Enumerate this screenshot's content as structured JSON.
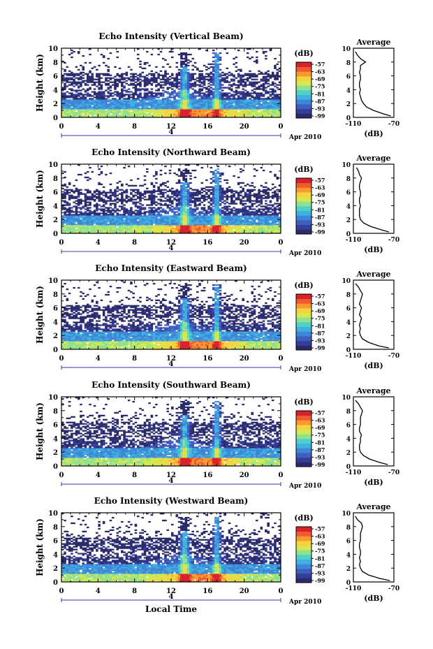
{
  "figure": {
    "x_axis_title": "Local Time",
    "date_label": "Apr 2010",
    "day_label": "4",
    "colorbar_unit": "(dB)",
    "avg_title": "Average",
    "avg_xlabel": "(dB)",
    "y_axis_title": "Height (km)"
  },
  "colors": {
    "colormap": [
      "#2b2b6b",
      "#353f9a",
      "#3f5fbf",
      "#3f86d8",
      "#3fb0df",
      "#4fd0c8",
      "#8fe08f",
      "#d4e84f",
      "#f7d23f",
      "#f89a2f",
      "#ef5a2f",
      "#d8222a"
    ],
    "axis": "#000000"
  },
  "chart_data": [
    {
      "type": "heatmap",
      "title": "Echo Intensity (Vertical Beam)",
      "xlabel": "",
      "ylabel": "Height (km)",
      "xlim": [
        0,
        24
      ],
      "ylim": [
        0,
        10
      ],
      "x_ticks": [
        "0",
        "4",
        "8",
        "12",
        "16",
        "20",
        "0"
      ],
      "y_ticks": [
        "0",
        "2",
        "4",
        "6",
        "8",
        "10"
      ],
      "colorbar": {
        "unit": "(dB)",
        "ticks": [
          "-57",
          "-63",
          "-69",
          "-75",
          "-81",
          "-87",
          "-93",
          "-99"
        ]
      },
      "average_profile": {
        "title": "Average",
        "xlabel": "(dB)",
        "xlim": [
          -110,
          -70
        ],
        "ylim": [
          0,
          10
        ],
        "x_ticks": [
          "-110",
          "-70"
        ],
        "y_ticks": [
          "0",
          "2",
          "4",
          "6",
          "8",
          "10"
        ],
        "height": [
          0.2,
          0.5,
          1.0,
          1.5,
          2.0,
          2.5,
          3.0,
          3.5,
          4.0,
          4.5,
          5.0,
          5.5,
          6.0,
          6.5,
          7.0,
          7.5,
          8.0,
          8.5,
          9.0,
          9.5
        ],
        "intensity": [
          -73,
          -80,
          -90,
          -97,
          -100,
          -102,
          -103,
          -104,
          -103,
          -104,
          -104,
          -103,
          -103,
          -104,
          -103,
          -103,
          -98,
          -103,
          -106,
          -108
        ]
      }
    },
    {
      "type": "heatmap",
      "title": "Echo Intensity (Northward Beam)",
      "xlabel": "",
      "ylabel": "Height (km)",
      "xlim": [
        0,
        24
      ],
      "ylim": [
        0,
        10
      ],
      "x_ticks": [
        "0",
        "4",
        "8",
        "12",
        "16",
        "20",
        "0"
      ],
      "y_ticks": [
        "0",
        "2",
        "4",
        "6",
        "8",
        "10"
      ],
      "colorbar": {
        "unit": "(dB)",
        "ticks": [
          "-57",
          "-63",
          "-69",
          "-75",
          "-81",
          "-87",
          "-93",
          "-99"
        ]
      },
      "average_profile": {
        "title": "Average",
        "xlabel": "(dB)",
        "xlim": [
          -110,
          -70
        ],
        "ylim": [
          0,
          10
        ],
        "x_ticks": [
          "-110",
          "-70"
        ],
        "y_ticks": [
          "0",
          "2",
          "4",
          "6",
          "8",
          "10"
        ],
        "height": [
          0.2,
          0.5,
          1.0,
          1.5,
          2.0,
          2.5,
          3.0,
          3.5,
          4.0,
          4.5,
          5.0,
          5.5,
          6.0,
          6.5,
          7.0,
          7.5,
          8.0,
          8.5,
          9.0,
          9.5
        ],
        "intensity": [
          -75,
          -82,
          -93,
          -100,
          -103,
          -104,
          -104,
          -104,
          -103,
          -104,
          -104,
          -103,
          -103,
          -104,
          -104,
          -103,
          -102,
          -104,
          -105,
          -107
        ]
      }
    },
    {
      "type": "heatmap",
      "title": "Echo Intensity (Eastward Beam)",
      "xlabel": "",
      "ylabel": "Height (km)",
      "xlim": [
        0,
        24
      ],
      "ylim": [
        0,
        10
      ],
      "x_ticks": [
        "0",
        "4",
        "8",
        "12",
        "16",
        "20",
        "0"
      ],
      "y_ticks": [
        "0",
        "2",
        "4",
        "6",
        "8",
        "10"
      ],
      "colorbar": {
        "unit": "(dB)",
        "ticks": [
          "-57",
          "-63",
          "-69",
          "-75",
          "-81",
          "-87",
          "-93",
          "-99"
        ]
      },
      "average_profile": {
        "title": "Average",
        "xlabel": "(dB)",
        "xlim": [
          -110,
          -70
        ],
        "ylim": [
          0,
          10
        ],
        "x_ticks": [
          "-110",
          "-70"
        ],
        "y_ticks": [
          "0",
          "2",
          "4",
          "6",
          "8",
          "10"
        ],
        "height": [
          0.2,
          0.5,
          1.0,
          1.5,
          2.0,
          2.5,
          3.0,
          3.5,
          4.0,
          4.5,
          5.0,
          5.5,
          6.0,
          6.5,
          7.0,
          7.5,
          8.0,
          8.5,
          9.0,
          9.5
        ],
        "intensity": [
          -75,
          -85,
          -95,
          -101,
          -103,
          -104,
          -103,
          -104,
          -103,
          -102,
          -104,
          -103,
          -102,
          -104,
          -103,
          -102,
          -101,
          -103,
          -105,
          -108
        ]
      }
    },
    {
      "type": "heatmap",
      "title": "Echo Intensity (Southward Beam)",
      "xlabel": "",
      "ylabel": "Height (km)",
      "xlim": [
        0,
        24
      ],
      "ylim": [
        0,
        10
      ],
      "x_ticks": [
        "0",
        "4",
        "8",
        "12",
        "16",
        "20",
        "0"
      ],
      "y_ticks": [
        "0",
        "2",
        "4",
        "6",
        "8",
        "10"
      ],
      "colorbar": {
        "unit": "(dB)",
        "ticks": [
          "-57",
          "-63",
          "-69",
          "-75",
          "-81",
          "-87",
          "-93",
          "-99"
        ]
      },
      "average_profile": {
        "title": "Average",
        "xlabel": "(dB)",
        "xlim": [
          -110,
          -70
        ],
        "ylim": [
          0,
          10
        ],
        "x_ticks": [
          "-110",
          "-70"
        ],
        "y_ticks": [
          "0",
          "2",
          "4",
          "6",
          "8",
          "10"
        ],
        "height": [
          0.2,
          0.5,
          1.0,
          1.5,
          2.0,
          2.5,
          3.0,
          3.5,
          4.0,
          4.5,
          5.0,
          5.5,
          6.0,
          6.5,
          7.0,
          7.5,
          8.0,
          8.5,
          9.0,
          9.5
        ],
        "intensity": [
          -76,
          -84,
          -94,
          -100,
          -103,
          -104,
          -104,
          -103,
          -103,
          -102,
          -104,
          -104,
          -103,
          -103,
          -103,
          -102,
          -101,
          -103,
          -105,
          -108
        ]
      }
    },
    {
      "type": "heatmap",
      "title": "Echo Intensity (Westward Beam)",
      "xlabel": "Local Time",
      "ylabel": "Height (km)",
      "xlim": [
        0,
        24
      ],
      "ylim": [
        0,
        10
      ],
      "x_ticks": [
        "0",
        "4",
        "8",
        "12",
        "16",
        "20",
        "0"
      ],
      "y_ticks": [
        "0",
        "2",
        "4",
        "6",
        "8",
        "10"
      ],
      "colorbar": {
        "unit": "(dB)",
        "ticks": [
          "-57",
          "-63",
          "-69",
          "-75",
          "-81",
          "-87",
          "-93",
          "-99"
        ]
      },
      "average_profile": {
        "title": "Average",
        "xlabel": "(dB)",
        "xlim": [
          -110,
          -70
        ],
        "ylim": [
          0,
          10
        ],
        "x_ticks": [
          "-110",
          "-70"
        ],
        "y_ticks": [
          "0",
          "2",
          "4",
          "6",
          "8",
          "10"
        ],
        "height": [
          0.2,
          0.5,
          1.0,
          1.5,
          2.0,
          2.5,
          3.0,
          3.5,
          4.0,
          4.5,
          5.0,
          5.5,
          6.0,
          6.5,
          7.0,
          7.5,
          8.0,
          8.5,
          9.0,
          9.5
        ],
        "intensity": [
          -74,
          -84,
          -95,
          -101,
          -103,
          -104,
          -103,
          -104,
          -103,
          -103,
          -104,
          -104,
          -103,
          -103,
          -103,
          -102,
          -101,
          -102,
          -106,
          -108
        ]
      }
    }
  ]
}
